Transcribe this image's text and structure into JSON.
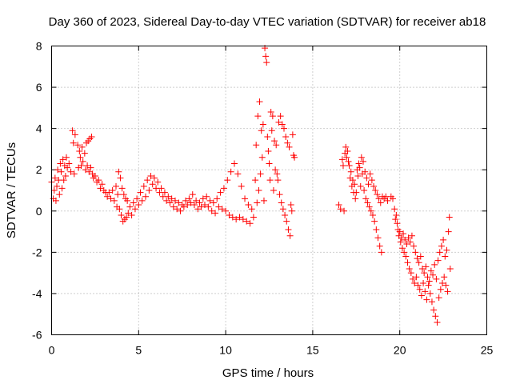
{
  "chart_data": {
    "type": "scatter",
    "title": "Day 360 of 2023, Sidereal Day-to-day VTEC variation (SDTVAR) for receiver ab18",
    "xlabel": "GPS time / hours",
    "ylabel": "SDTVAR / TECUs",
    "xlim": [
      0,
      25
    ],
    "ylim": [
      -6,
      8
    ],
    "xticks": [
      0,
      5,
      10,
      15,
      20,
      25
    ],
    "yticks": [
      -6,
      -4,
      -2,
      0,
      2,
      4,
      6,
      8
    ],
    "xtick_labels": [
      "0",
      "5",
      "10",
      "15",
      "20",
      "25"
    ],
    "ytick_labels": [
      "-6",
      "-4",
      "-2",
      "0",
      "2",
      "4",
      "6",
      "8"
    ],
    "grid": true,
    "marker": "+",
    "series": [
      {
        "name": "SDTVAR",
        "color": "#ff0000",
        "points": [
          [
            0.0,
            1.4
          ],
          [
            0.1,
            0.6
          ],
          [
            0.15,
            1.0
          ],
          [
            0.2,
            1.6
          ],
          [
            0.25,
            0.5
          ],
          [
            0.3,
            1.2
          ],
          [
            0.35,
            2.0
          ],
          [
            0.4,
            1.5
          ],
          [
            0.45,
            0.8
          ],
          [
            0.5,
            2.3
          ],
          [
            0.55,
            1.9
          ],
          [
            0.6,
            1.1
          ],
          [
            0.65,
            2.5
          ],
          [
            0.7,
            1.5
          ],
          [
            0.75,
            2.2
          ],
          [
            0.8,
            1.7
          ],
          [
            0.85,
            2.6
          ],
          [
            0.9,
            2.1
          ],
          [
            1.0,
            2.3
          ],
          [
            1.1,
            1.9
          ],
          [
            1.2,
            3.9
          ],
          [
            1.25,
            3.3
          ],
          [
            1.3,
            1.8
          ],
          [
            1.35,
            3.7
          ],
          [
            1.5,
            3.2
          ],
          [
            1.55,
            2.1
          ],
          [
            1.6,
            2.9
          ],
          [
            1.65,
            2.6
          ],
          [
            1.7,
            2.2
          ],
          [
            1.75,
            3.1
          ],
          [
            1.8,
            2.4
          ],
          [
            1.9,
            2.8
          ],
          [
            1.95,
            2.0
          ],
          [
            2.0,
            3.3
          ],
          [
            2.05,
            2.2
          ],
          [
            2.1,
            3.4
          ],
          [
            2.15,
            1.9
          ],
          [
            2.2,
            3.5
          ],
          [
            2.25,
            2.1
          ],
          [
            2.3,
            3.6
          ],
          [
            2.35,
            1.8
          ],
          [
            2.4,
            1.6
          ],
          [
            2.5,
            1.7
          ],
          [
            2.6,
            1.4
          ],
          [
            2.7,
            1.5
          ],
          [
            2.8,
            1.1
          ],
          [
            2.9,
            1.3
          ],
          [
            3.0,
            1.0
          ],
          [
            3.1,
            0.9
          ],
          [
            3.2,
            0.7
          ],
          [
            3.3,
            0.9
          ],
          [
            3.4,
            0.6
          ],
          [
            3.5,
            1.0
          ],
          [
            3.6,
            0.5
          ],
          [
            3.7,
            1.2
          ],
          [
            3.75,
            0.2
          ],
          [
            3.8,
            0.8
          ],
          [
            3.85,
            1.9
          ],
          [
            3.9,
            0.1
          ],
          [
            3.95,
            1.6
          ],
          [
            4.0,
            -0.2
          ],
          [
            4.05,
            1.1
          ],
          [
            4.1,
            -0.5
          ],
          [
            4.15,
            0.8
          ],
          [
            4.2,
            -0.4
          ],
          [
            4.25,
            0.6
          ],
          [
            4.3,
            -0.3
          ],
          [
            4.35,
            0.5
          ],
          [
            4.4,
            -0.1
          ],
          [
            4.5,
            0.2
          ],
          [
            4.6,
            -0.2
          ],
          [
            4.7,
            0.4
          ],
          [
            4.8,
            0.1
          ],
          [
            4.9,
            0.6
          ],
          [
            5.0,
            0.3
          ],
          [
            5.1,
            0.9
          ],
          [
            5.2,
            0.5
          ],
          [
            5.3,
            1.2
          ],
          [
            5.4,
            0.7
          ],
          [
            5.5,
            1.5
          ],
          [
            5.6,
            1.0
          ],
          [
            5.7,
            1.7
          ],
          [
            5.8,
            1.3
          ],
          [
            5.9,
            1.6
          ],
          [
            6.0,
            1.1
          ],
          [
            6.1,
            1.4
          ],
          [
            6.2,
            0.9
          ],
          [
            6.3,
            1.1
          ],
          [
            6.4,
            0.7
          ],
          [
            6.5,
            0.9
          ],
          [
            6.6,
            0.5
          ],
          [
            6.7,
            0.7
          ],
          [
            6.8,
            0.4
          ],
          [
            6.9,
            0.6
          ],
          [
            7.0,
            0.2
          ],
          [
            7.1,
            0.5
          ],
          [
            7.2,
            0.1
          ],
          [
            7.3,
            0.4
          ],
          [
            7.4,
            0.0
          ],
          [
            7.5,
            0.3
          ],
          [
            7.6,
            0.2
          ],
          [
            7.7,
            0.5
          ],
          [
            7.8,
            0.3
          ],
          [
            7.9,
            0.6
          ],
          [
            8.0,
            0.4
          ],
          [
            8.1,
            0.8
          ],
          [
            8.2,
            0.3
          ],
          [
            8.3,
            0.5
          ],
          [
            8.4,
            0.1
          ],
          [
            8.5,
            0.4
          ],
          [
            8.6,
            0.2
          ],
          [
            8.7,
            0.6
          ],
          [
            8.8,
            0.3
          ],
          [
            8.9,
            0.7
          ],
          [
            9.0,
            0.2
          ],
          [
            9.1,
            0.5
          ],
          [
            9.2,
            0.0
          ],
          [
            9.3,
            0.4
          ],
          [
            9.4,
            -0.1
          ],
          [
            9.5,
            0.6
          ],
          [
            9.6,
            0.2
          ],
          [
            9.7,
            0.9
          ],
          [
            9.8,
            0.1
          ],
          [
            9.9,
            1.1
          ],
          [
            10.0,
            0.0
          ],
          [
            10.1,
            1.5
          ],
          [
            10.2,
            -0.2
          ],
          [
            10.3,
            1.9
          ],
          [
            10.4,
            -0.3
          ],
          [
            10.5,
            2.3
          ],
          [
            10.6,
            -0.4
          ],
          [
            10.7,
            1.8
          ],
          [
            10.8,
            -0.3
          ],
          [
            10.9,
            1.2
          ],
          [
            11.0,
            -0.4
          ],
          [
            11.1,
            0.6
          ],
          [
            11.2,
            -0.5
          ],
          [
            11.3,
            0.3
          ],
          [
            11.4,
            -0.6
          ],
          [
            11.5,
            0.1
          ],
          [
            11.6,
            -0.3
          ],
          [
            11.7,
            1.5
          ],
          [
            11.75,
            3.2
          ],
          [
            11.8,
            0.4
          ],
          [
            11.85,
            4.6
          ],
          [
            11.9,
            1.0
          ],
          [
            11.95,
            5.3
          ],
          [
            12.0,
            1.8
          ],
          [
            12.05,
            3.9
          ],
          [
            12.1,
            2.6
          ],
          [
            12.15,
            4.2
          ],
          [
            12.2,
            0.5
          ],
          [
            12.25,
            7.9
          ],
          [
            12.3,
            7.5
          ],
          [
            12.35,
            7.2
          ],
          [
            12.4,
            3.6
          ],
          [
            12.45,
            2.9
          ],
          [
            12.5,
            2.3
          ],
          [
            12.55,
            1.5
          ],
          [
            12.6,
            4.8
          ],
          [
            12.65,
            3.9
          ],
          [
            12.7,
            4.6
          ],
          [
            12.75,
            1.0
          ],
          [
            12.8,
            3.4
          ],
          [
            12.85,
            2.0
          ],
          [
            12.9,
            3.2
          ],
          [
            12.95,
            1.8
          ],
          [
            13.0,
            1.5
          ],
          [
            13.05,
            4.3
          ],
          [
            13.1,
            0.8
          ],
          [
            13.15,
            4.6
          ],
          [
            13.2,
            0.4
          ],
          [
            13.25,
            4.2
          ],
          [
            13.3,
            0.1
          ],
          [
            13.35,
            4.0
          ],
          [
            13.4,
            -0.2
          ],
          [
            13.45,
            3.6
          ],
          [
            13.5,
            -0.5
          ],
          [
            13.55,
            3.3
          ],
          [
            13.6,
            -0.9
          ],
          [
            13.65,
            3.1
          ],
          [
            13.7,
            -1.2
          ],
          [
            13.75,
            0.3
          ],
          [
            13.8,
            0.0
          ],
          [
            13.85,
            3.7
          ],
          [
            13.9,
            2.7
          ],
          [
            13.95,
            2.6
          ],
          [
            16.5,
            0.3
          ],
          [
            16.6,
            0.1
          ],
          [
            16.7,
            2.5
          ],
          [
            16.75,
            2.2
          ],
          [
            16.8,
            0.0
          ],
          [
            16.85,
            2.8
          ],
          [
            16.9,
            3.1
          ],
          [
            16.95,
            2.6
          ],
          [
            17.0,
            2.9
          ],
          [
            17.05,
            2.4
          ],
          [
            17.1,
            2.2
          ],
          [
            17.15,
            1.6
          ],
          [
            17.2,
            1.9
          ],
          [
            17.25,
            1.2
          ],
          [
            17.3,
            1.5
          ],
          [
            17.35,
            0.9
          ],
          [
            17.4,
            1.3
          ],
          [
            17.45,
            0.6
          ],
          [
            17.5,
            0.9
          ],
          [
            17.55,
            2.0
          ],
          [
            17.6,
            1.7
          ],
          [
            17.65,
            2.3
          ],
          [
            17.7,
            2.1
          ],
          [
            17.75,
            1.2
          ],
          [
            17.8,
            2.6
          ],
          [
            17.85,
            1.8
          ],
          [
            17.9,
            2.4
          ],
          [
            17.95,
            1.0
          ],
          [
            18.0,
            1.9
          ],
          [
            18.05,
            0.6
          ],
          [
            18.1,
            1.6
          ],
          [
            18.15,
            0.4
          ],
          [
            18.2,
            1.3
          ],
          [
            18.25,
            0.2
          ],
          [
            18.3,
            1.8
          ],
          [
            18.35,
            0.0
          ],
          [
            18.4,
            1.5
          ],
          [
            18.45,
            -0.2
          ],
          [
            18.5,
            1.2
          ],
          [
            18.55,
            -0.5
          ],
          [
            18.6,
            1.0
          ],
          [
            18.65,
            -0.9
          ],
          [
            18.7,
            0.8
          ],
          [
            18.75,
            -1.3
          ],
          [
            18.8,
            0.6
          ],
          [
            18.85,
            -1.7
          ],
          [
            18.9,
            0.4
          ],
          [
            18.95,
            -2.0
          ],
          [
            19.0,
            0.7
          ],
          [
            19.1,
            0.6
          ],
          [
            19.2,
            0.7
          ],
          [
            19.3,
            0.5
          ],
          [
            19.5,
            0.7
          ],
          [
            19.6,
            0.6
          ],
          [
            19.7,
            0.1
          ],
          [
            19.75,
            -0.4
          ],
          [
            19.8,
            -0.2
          ],
          [
            19.85,
            -0.6
          ],
          [
            19.9,
            -0.9
          ],
          [
            19.95,
            -1.2
          ],
          [
            20.0,
            -1.0
          ],
          [
            20.05,
            -1.5
          ],
          [
            20.1,
            -1.3
          ],
          [
            20.15,
            -1.8
          ],
          [
            20.2,
            -1.1
          ],
          [
            20.25,
            -2.0
          ],
          [
            20.3,
            -1.4
          ],
          [
            20.35,
            -2.2
          ],
          [
            20.4,
            -1.6
          ],
          [
            20.45,
            -2.5
          ],
          [
            20.5,
            -1.3
          ],
          [
            20.55,
            -2.8
          ],
          [
            20.6,
            -1.5
          ],
          [
            20.65,
            -3.0
          ],
          [
            20.7,
            -1.2
          ],
          [
            20.75,
            -3.3
          ],
          [
            20.8,
            -1.7
          ],
          [
            20.85,
            -3.5
          ],
          [
            20.9,
            -2.0
          ],
          [
            20.95,
            -3.2
          ],
          [
            21.0,
            -2.3
          ],
          [
            21.05,
            -3.6
          ],
          [
            21.1,
            -2.5
          ],
          [
            21.15,
            -3.8
          ],
          [
            21.2,
            -2.2
          ],
          [
            21.25,
            -4.1
          ],
          [
            21.3,
            -2.8
          ],
          [
            21.35,
            -3.5
          ],
          [
            21.4,
            -3.0
          ],
          [
            21.45,
            -3.9
          ],
          [
            21.5,
            -2.7
          ],
          [
            21.55,
            -4.3
          ],
          [
            21.6,
            -3.2
          ],
          [
            21.65,
            -3.6
          ],
          [
            21.7,
            -3.4
          ],
          [
            21.75,
            -4.0
          ],
          [
            21.8,
            -2.9
          ],
          [
            21.85,
            -4.4
          ],
          [
            21.9,
            -3.1
          ],
          [
            21.95,
            -4.8
          ],
          [
            22.0,
            -2.6
          ],
          [
            22.05,
            -5.1
          ],
          [
            22.1,
            -3.3
          ],
          [
            22.15,
            -5.4
          ],
          [
            22.2,
            -2.4
          ],
          [
            22.25,
            -4.2
          ],
          [
            22.3,
            -2.0
          ],
          [
            22.35,
            -3.8
          ],
          [
            22.4,
            -1.7
          ],
          [
            22.45,
            -3.5
          ],
          [
            22.5,
            -1.4
          ],
          [
            22.55,
            -3.2
          ],
          [
            22.6,
            -2.2
          ],
          [
            22.65,
            -3.6
          ],
          [
            22.7,
            -1.9
          ],
          [
            22.75,
            -3.9
          ],
          [
            22.8,
            -1.0
          ],
          [
            22.85,
            -0.3
          ],
          [
            22.9,
            -2.8
          ]
        ]
      }
    ]
  }
}
